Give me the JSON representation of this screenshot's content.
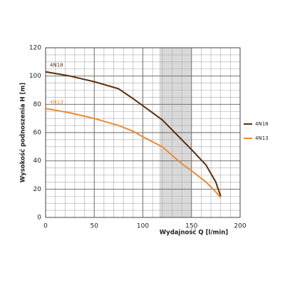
{
  "chart_data": {
    "type": "line",
    "x_label": "Wydajność Q [l/min]",
    "y_label": "Wysokość podnoszenia H [m]",
    "series": [
      {
        "name": "4N18",
        "color": "#5a2d0c",
        "x": [
          0,
          25,
          50,
          75,
          90,
          100,
          120,
          140,
          150,
          165,
          175,
          180
        ],
        "values": [
          103,
          100,
          96,
          91,
          84,
          79,
          69,
          55,
          48,
          37,
          25,
          15
        ]
      },
      {
        "name": "4N13",
        "color": "#ef8a33",
        "x": [
          0,
          25,
          50,
          75,
          90,
          100,
          120,
          140,
          150,
          165,
          175,
          180
        ],
        "values": [
          77,
          74,
          70,
          65,
          61,
          57,
          50,
          38,
          33,
          25,
          18,
          14
        ]
      }
    ],
    "highlight_x": [
      117,
      150
    ],
    "highlight_color": "#d9d9d9",
    "xlim": [
      0,
      200
    ],
    "ylim": [
      0,
      120
    ],
    "xticks": [
      0,
      50,
      100,
      150,
      200
    ],
    "yticks": [
      0,
      20,
      40,
      60,
      80,
      100,
      120
    ],
    "x_grid": [
      10,
      20,
      30,
      40,
      50,
      60,
      70,
      80,
      90,
      100,
      110,
      120,
      130,
      140,
      150,
      160,
      170,
      180,
      190
    ],
    "y_grid": [
      5,
      10,
      15,
      20,
      25,
      30,
      35,
      40,
      45,
      50,
      55,
      60,
      65,
      70,
      75,
      80,
      85,
      90,
      95,
      100,
      105,
      110,
      115
    ],
    "legend": "right"
  }
}
